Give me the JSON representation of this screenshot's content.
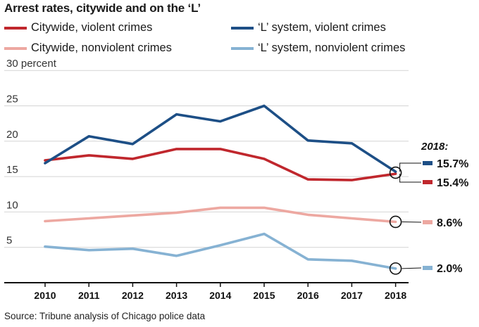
{
  "chart_data": {
    "type": "line",
    "title": "Arrest rates, citywide and on the ‘L’",
    "y_axis_unit_label": "30 percent",
    "x": [
      2010,
      2011,
      2012,
      2013,
      2014,
      2015,
      2016,
      2017,
      2018
    ],
    "x_tick_labels": [
      "2010",
      "2011",
      "2012",
      "2013",
      "2014",
      "2015",
      "2016",
      "2017",
      "2018"
    ],
    "y_tick_labels": [
      "25",
      "20",
      "15",
      "10",
      "5"
    ],
    "ylim": [
      0,
      30
    ],
    "yticks": [
      5,
      10,
      15,
      20,
      25,
      30
    ],
    "grid": true,
    "legend_placement": "top",
    "series": [
      {
        "name": "Citywide, violent crimes",
        "color": "#c0272d",
        "values": [
          17.3,
          18.0,
          17.5,
          18.9,
          18.9,
          17.5,
          14.6,
          14.5,
          15.4
        ]
      },
      {
        "name": "‘L’ system, violent crimes",
        "color": "#1d4f86",
        "values": [
          16.9,
          20.7,
          19.6,
          23.8,
          22.8,
          25.0,
          20.1,
          19.7,
          15.7
        ]
      },
      {
        "name": "Citywide, nonviolent crimes",
        "color": "#eda8a1",
        "values": [
          8.7,
          9.1,
          9.5,
          9.9,
          10.6,
          10.6,
          9.6,
          9.1,
          8.6
        ]
      },
      {
        "name": "‘L’ system, nonviolent crimes",
        "color": "#86b2d3",
        "values": [
          5.1,
          4.6,
          4.8,
          3.8,
          5.3,
          6.9,
          3.3,
          3.1,
          2.0
        ]
      }
    ],
    "annotation": {
      "header": "2018:",
      "labels": [
        "15.7%",
        "15.4%",
        "8.6%",
        "2.0%"
      ],
      "label_series": [
        1,
        0,
        2,
        3
      ]
    },
    "source": "Source: Tribune analysis of Chicago police data"
  }
}
